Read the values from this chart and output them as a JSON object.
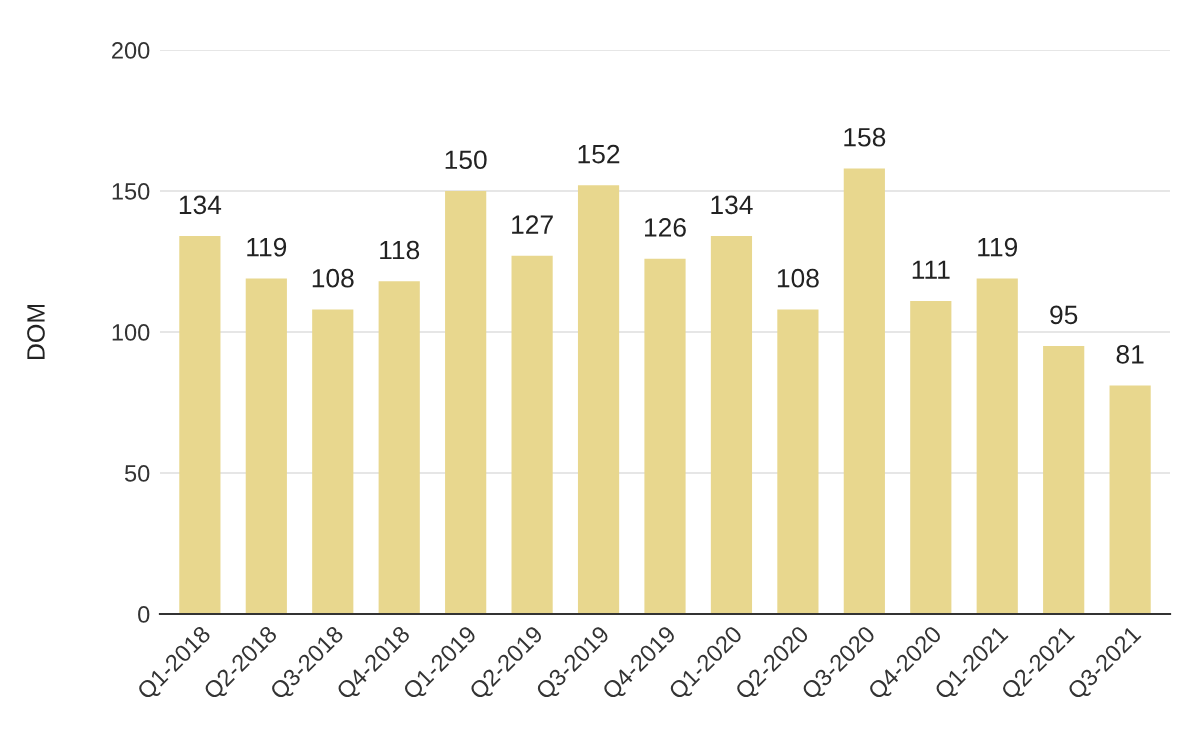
{
  "chart_data": {
    "type": "bar",
    "ylabel": "DOM",
    "categories": [
      "Q1-2018",
      "Q2-2018",
      "Q3-2018",
      "Q4-2018",
      "Q1-2019",
      "Q2-2019",
      "Q3-2019",
      "Q4-2019",
      "Q1-2020",
      "Q2-2020",
      "Q3-2020",
      "Q4-2020",
      "Q1-2021",
      "Q2-2021",
      "Q3-2021"
    ],
    "values": [
      134,
      119,
      108,
      118,
      150,
      127,
      152,
      126,
      134,
      108,
      158,
      111,
      119,
      95,
      81
    ],
    "color": "#e8d78e",
    "ylim": [
      0,
      200
    ],
    "yticks": [
      0,
      50,
      100,
      150,
      200
    ],
    "grid": "y",
    "data_labels": true,
    "legend": false
  }
}
